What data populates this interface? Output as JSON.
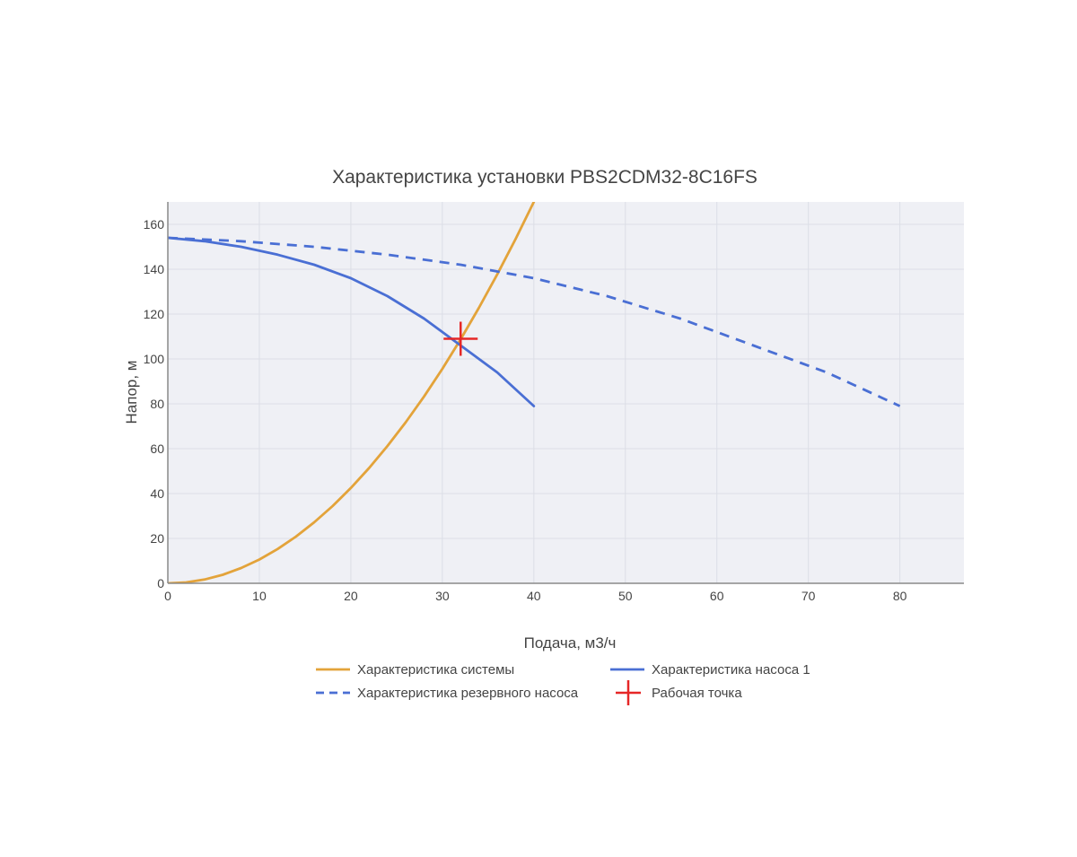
{
  "colors": {
    "plot_bg": "#eff0f5",
    "grid": "#dcdee6",
    "axis": "#8a8a8a",
    "text": "#444444",
    "system": "#e3a33a",
    "pump1": "#4a6fd4",
    "reserve": "#4a6fd4",
    "operating": "#e62727"
  },
  "chart_data": {
    "type": "line",
    "title": "Характеристика установки PBS2CDM32-8C16FS",
    "xlabel": "Подача, м3/ч",
    "ylabel": "Напор, м",
    "xlim": [
      0,
      87
    ],
    "ylim": [
      0,
      170
    ],
    "xticks": [
      0,
      10,
      20,
      30,
      40,
      50,
      60,
      70,
      80
    ],
    "yticks": [
      0,
      20,
      40,
      60,
      80,
      100,
      120,
      140,
      160
    ],
    "grid": true,
    "legend_position": "bottom",
    "series": [
      {
        "key": "system",
        "name": "Характеристика системы",
        "style": "solid",
        "x": [
          0,
          2,
          4,
          6,
          8,
          10,
          12,
          14,
          16,
          18,
          20,
          22,
          24,
          26,
          28,
          30,
          32,
          34,
          36,
          38,
          40
        ],
        "y": [
          0,
          0.4,
          1.7,
          3.8,
          6.8,
          10.6,
          15.3,
          20.8,
          27.2,
          34.4,
          42.5,
          51.4,
          61.2,
          71.8,
          83.3,
          95.6,
          108.8,
          122.8,
          137.7,
          153.4,
          170.0
        ]
      },
      {
        "key": "pump1",
        "name": "Характеристика насоса 1",
        "style": "solid",
        "x": [
          0,
          4,
          8,
          12,
          16,
          20,
          24,
          28,
          32,
          36,
          40
        ],
        "y": [
          154,
          152.5,
          150,
          146.5,
          142,
          136,
          128,
          118,
          106,
          94,
          79
        ]
      },
      {
        "key": "reserve",
        "name": "Характеристика резервного насоса",
        "style": "dash",
        "x": [
          0,
          8,
          16,
          24,
          32,
          40,
          48,
          56,
          64,
          72,
          80
        ],
        "y": [
          154,
          152.5,
          150,
          146.5,
          142,
          136,
          128,
          118,
          106,
          94,
          79
        ]
      },
      {
        "key": "operating",
        "name": "Рабочая точка",
        "style": "marker",
        "x": [
          32
        ],
        "y": [
          109
        ]
      }
    ]
  }
}
